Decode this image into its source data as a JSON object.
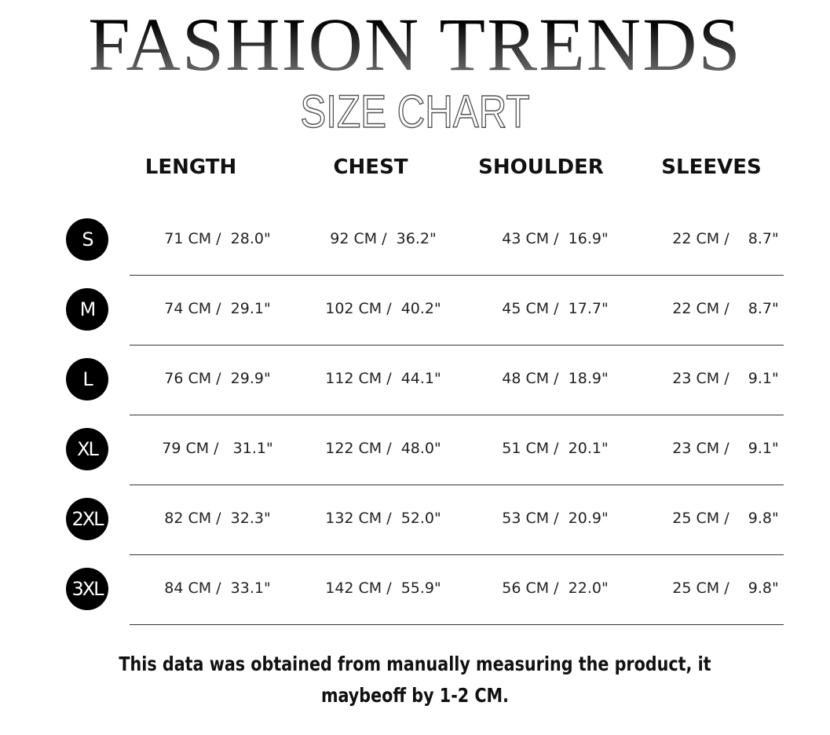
{
  "title": "FASHION TRENDS",
  "subtitle": "SIZE CHART",
  "headers": [
    "LENGTH",
    "CHEST",
    "SHOULDER",
    "SLEEVES"
  ],
  "rows": [
    {
      "size": "S",
      "length": "71 CM /  28.0\"",
      "chest": "92 CM /  36.2\"",
      "shoulder": "43 CM /  16.9\"",
      "sleeves": "22 CM /    8.7\""
    },
    {
      "size": "M",
      "length": "74 CM /  29.1\"",
      "chest": "102 CM /  40.2\"",
      "shoulder": "45 CM /  17.7\"",
      "sleeves": "22 CM /    8.7\""
    },
    {
      "size": "L",
      "length": "76 CM /  29.9\"",
      "chest": "112 CM /  44.1\"",
      "shoulder": "48 CM /  18.9\"",
      "sleeves": "23 CM /    9.1\""
    },
    {
      "size": "XL",
      "length": "79 CM /   31.1\"",
      "chest": "122 CM /  48.0\"",
      "shoulder": "51 CM /  20.1\"",
      "sleeves": "23 CM /    9.1\""
    },
    {
      "size": "2XL",
      "length": "82 CM /  32.3\"",
      "chest": "132 CM /  52.0\"",
      "shoulder": "53 CM /  20.9\"",
      "sleeves": "25 CM /    9.8\""
    },
    {
      "size": "3XL",
      "length": "84 CM /  33.1\"",
      "chest": "142 CM /  55.9\"",
      "shoulder": "56 CM /  22.0\"",
      "sleeves": "25 CM /    9.8\""
    }
  ],
  "note": "This data was obtained from manually measuring the product, it maybeoff by 1-2 CM."
}
